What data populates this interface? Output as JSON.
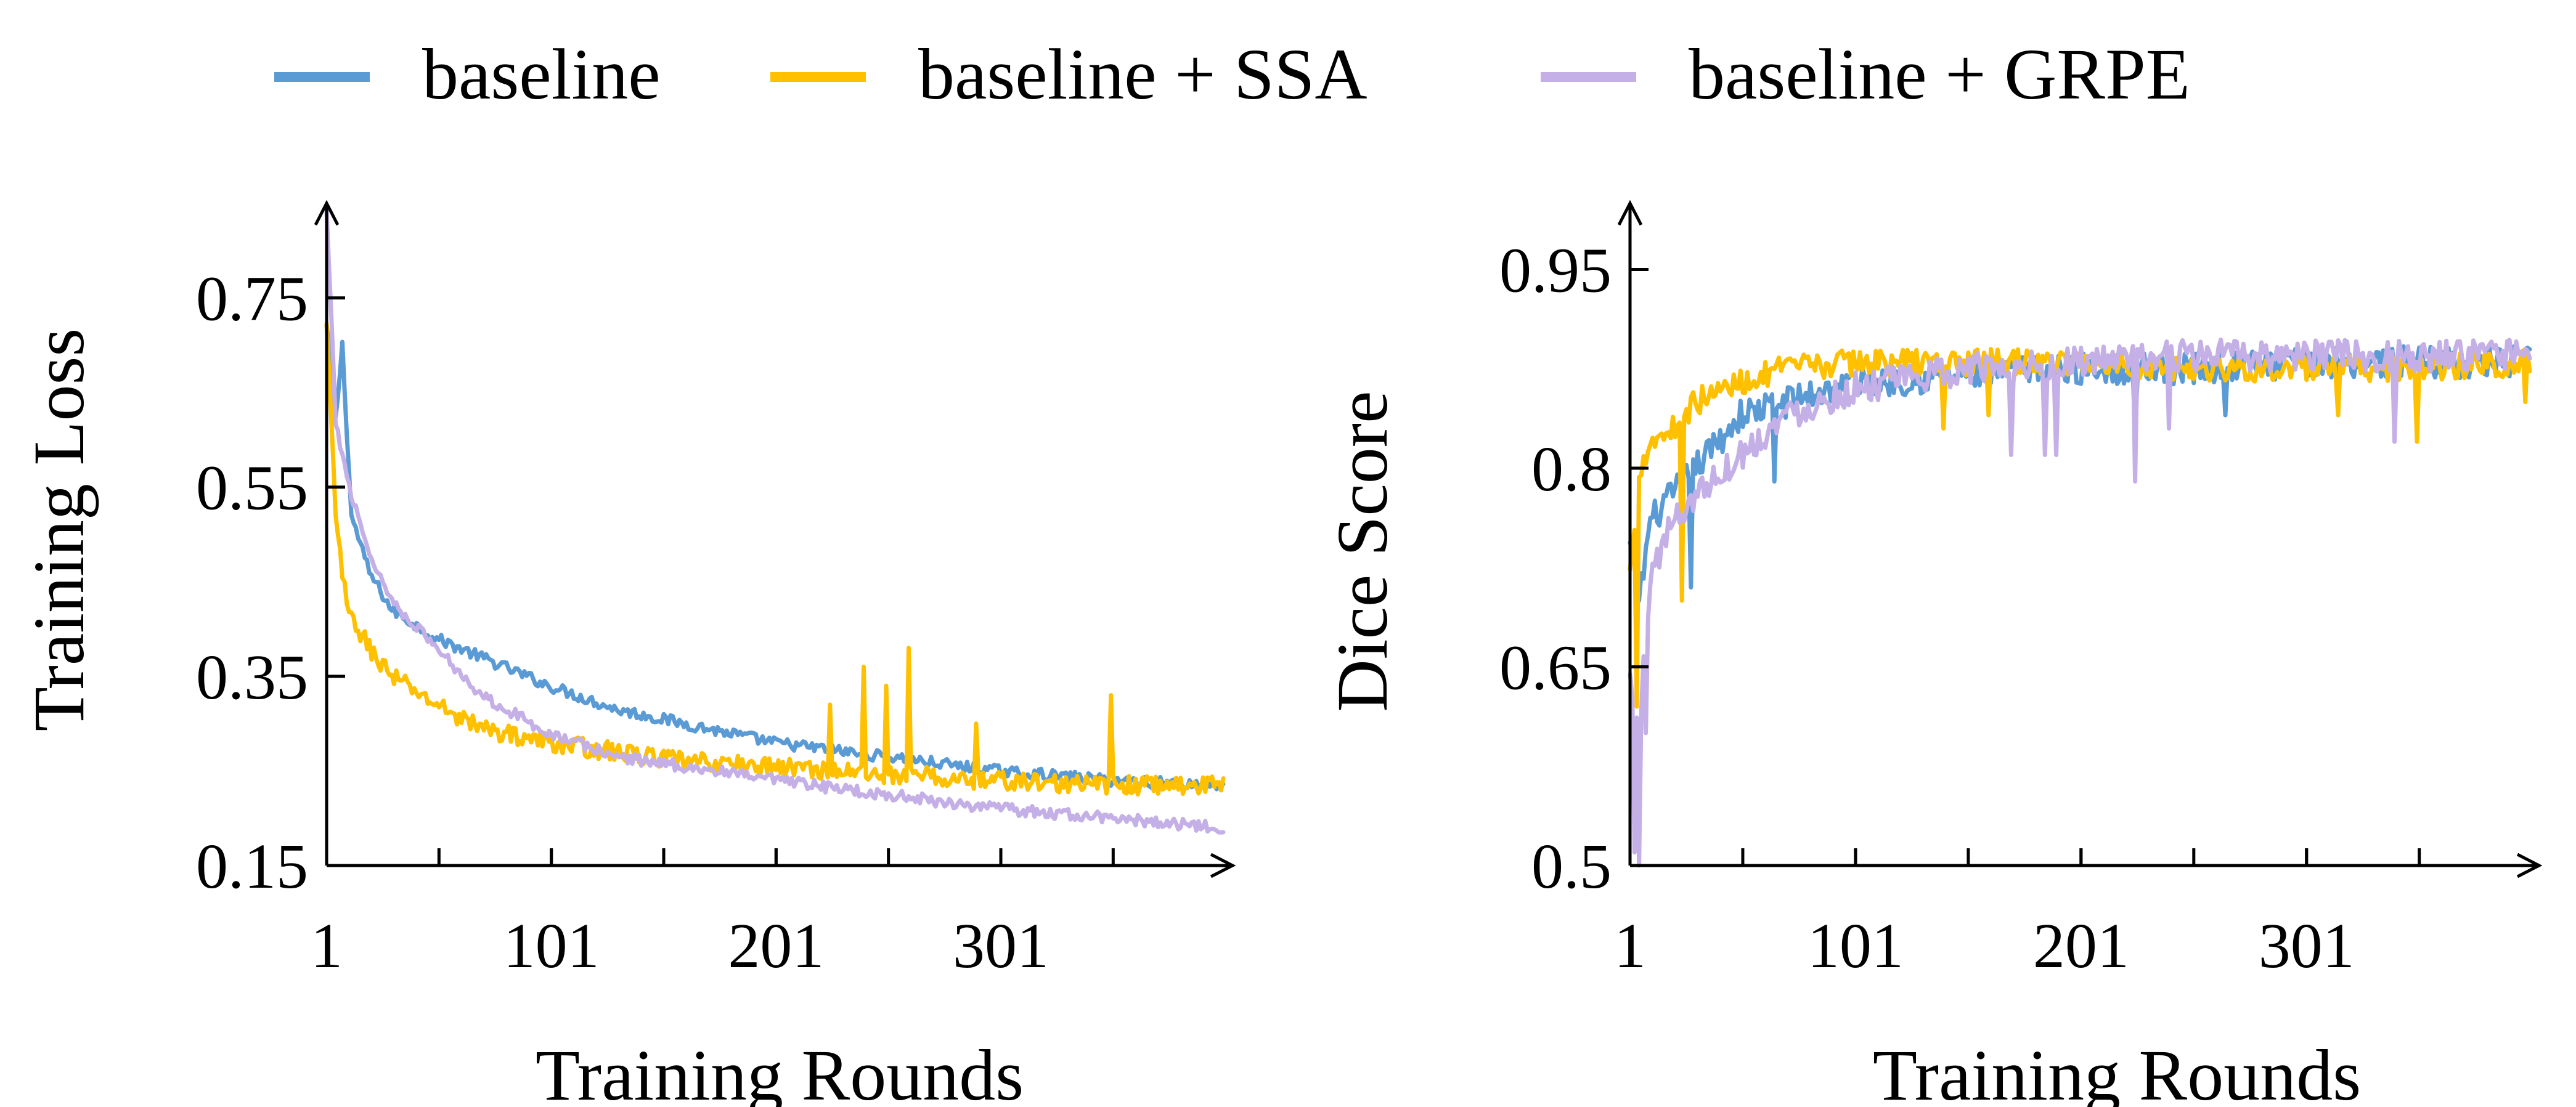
{
  "chart_data": [
    {
      "type": "line",
      "xlabel": "Training Rounds",
      "ylabel": "Training  Loss",
      "xlim": [
        1,
        400
      ],
      "ylim": [
        0.15,
        0.85
      ],
      "xticks": [
        1,
        101,
        201,
        301
      ],
      "yticks": [
        0.15,
        0.35,
        0.55,
        0.75
      ],
      "ytick_labels": [
        "0.15",
        "0.35",
        "0.55",
        "0.75"
      ],
      "legend": "top",
      "grid": false,
      "series": [
        {
          "name": "baseline",
          "color": "#5b9bd5",
          "x": [
            1,
            5,
            8,
            12,
            20,
            30,
            50,
            70,
            100,
            130,
            160,
            200,
            250,
            300,
            350,
            400
          ],
          "y": [
            0.72,
            0.62,
            0.7,
            0.52,
            0.46,
            0.42,
            0.39,
            0.37,
            0.34,
            0.315,
            0.3,
            0.28,
            0.265,
            0.25,
            0.24,
            0.235
          ],
          "noise": 0.006
        },
        {
          "name": "baseline + SSA",
          "color": "#ffc000",
          "x": [
            1,
            5,
            10,
            20,
            30,
            50,
            70,
            100,
            130,
            160,
            200,
            230,
            250,
            260,
            270,
            280,
            300,
            340,
            400
          ],
          "y": [
            0.72,
            0.52,
            0.42,
            0.38,
            0.35,
            0.32,
            0.295,
            0.28,
            0.27,
            0.26,
            0.255,
            0.25,
            0.245,
            0.245,
            0.245,
            0.24,
            0.24,
            0.235,
            0.235
          ],
          "noise": 0.01,
          "spikes": [
            [
              225,
              0.32
            ],
            [
              240,
              0.36
            ],
            [
              250,
              0.34
            ],
            [
              260,
              0.38
            ],
            [
              290,
              0.3
            ],
            [
              350,
              0.33
            ]
          ]
        },
        {
          "name": "baseline + GRPE",
          "color": "#c4b0e6",
          "x": [
            1,
            5,
            10,
            15,
            20,
            30,
            50,
            70,
            100,
            130,
            160,
            200,
            250,
            300,
            350,
            400
          ],
          "y": [
            0.84,
            0.62,
            0.56,
            0.52,
            0.48,
            0.43,
            0.38,
            0.33,
            0.29,
            0.265,
            0.255,
            0.24,
            0.225,
            0.21,
            0.2,
            0.19
          ],
          "noise": 0.006
        }
      ]
    },
    {
      "type": "line",
      "xlabel": "Training Rounds",
      "ylabel": "Dice Score",
      "xlim": [
        1,
        400
      ],
      "ylim": [
        0.5,
        1.0
      ],
      "xticks": [
        1,
        101,
        201,
        301
      ],
      "yticks": [
        0.5,
        0.65,
        0.8,
        0.95
      ],
      "ytick_labels": [
        "0.5",
        "0.65",
        "0.8",
        "0.95"
      ],
      "legend": "top",
      "grid": false,
      "series": [
        {
          "name": "baseline",
          "color": "#5b9bd5",
          "x": [
            1,
            5,
            10,
            20,
            30,
            50,
            70,
            100,
            150,
            200,
            250,
            300,
            350,
            400
          ],
          "y": [
            0.74,
            0.7,
            0.76,
            0.78,
            0.8,
            0.84,
            0.85,
            0.865,
            0.87,
            0.875,
            0.875,
            0.88,
            0.88,
            0.88
          ],
          "noise": 0.012,
          "dips": [
            [
              28,
              0.71
            ],
            [
              65,
              0.79
            ],
            [
              225,
              0.83
            ],
            [
              265,
              0.84
            ]
          ]
        },
        {
          "name": "baseline + SSA",
          "color": "#ffc000",
          "x": [
            1,
            5,
            10,
            20,
            30,
            50,
            70,
            100,
            150,
            200,
            250,
            300,
            350,
            400
          ],
          "y": [
            0.72,
            0.8,
            0.82,
            0.83,
            0.85,
            0.865,
            0.875,
            0.88,
            0.88,
            0.88,
            0.875,
            0.875,
            0.875,
            0.88
          ],
          "noise": 0.01,
          "dips": [
            [
              4,
              0.62
            ],
            [
              24,
              0.7
            ],
            [
              140,
              0.83
            ],
            [
              160,
              0.84
            ],
            [
              315,
              0.84
            ],
            [
              350,
              0.82
            ],
            [
              398,
              0.85
            ]
          ]
        },
        {
          "name": "baseline + GRPE",
          "color": "#c4b0e6",
          "x": [
            1,
            5,
            10,
            20,
            30,
            50,
            70,
            100,
            150,
            200,
            250,
            300,
            350,
            400
          ],
          "y": [
            0.64,
            0.6,
            0.72,
            0.76,
            0.78,
            0.81,
            0.84,
            0.86,
            0.875,
            0.88,
            0.885,
            0.885,
            0.885,
            0.885
          ],
          "noise": 0.012,
          "dips": [
            [
              3,
              0.51
            ],
            [
              5,
              0.5
            ],
            [
              8,
              0.6
            ],
            [
              170,
              0.81
            ],
            [
              185,
              0.81
            ],
            [
              190,
              0.81
            ],
            [
              225,
              0.79
            ],
            [
              240,
              0.83
            ],
            [
              340,
              0.82
            ]
          ]
        }
      ]
    }
  ]
}
